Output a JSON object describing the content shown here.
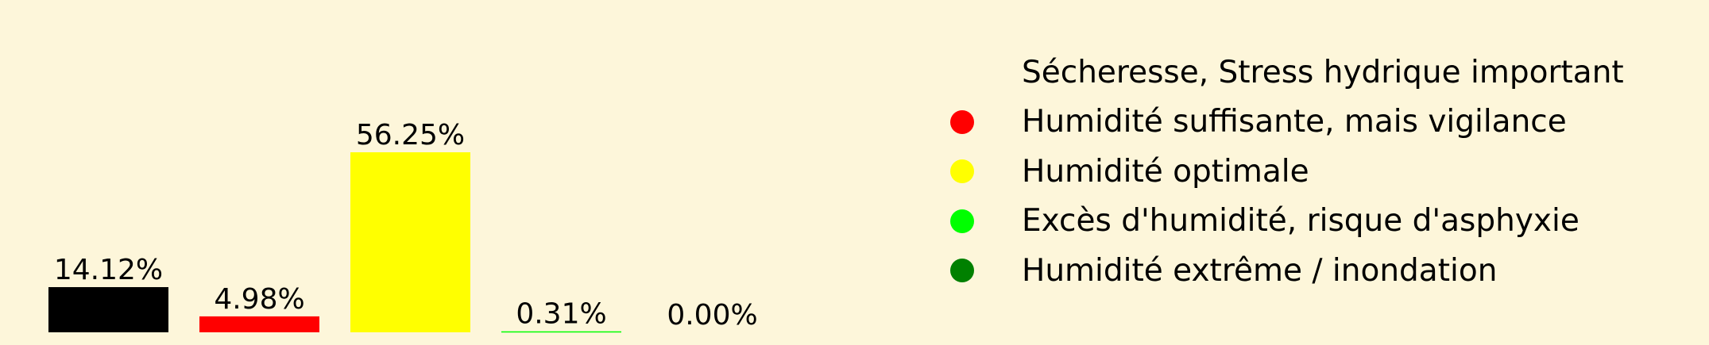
{
  "chart_data": {
    "type": "bar",
    "categories": [
      "Sécheresse, Stress hydrique important",
      "Humidité suffisante, mais vigilance",
      "Humidité optimale",
      "Excès d'humidité, risque d'asphyxie",
      "Humidité extrême / inondation"
    ],
    "values": [
      14.12,
      4.98,
      56.25,
      0.31,
      0.0
    ],
    "value_labels": [
      "14.12%",
      "4.98%",
      "56.25%",
      "0.31%",
      "0.00%"
    ],
    "colors": [
      "#000000",
      "#FF0000",
      "#FFFF00",
      "#00FF00",
      "#008000"
    ],
    "ylim": [
      0,
      56.25
    ],
    "grid": false,
    "legend_placement": "right",
    "legend": [
      {
        "label": "Sécheresse, Stress hydrique important",
        "color": "#000000"
      },
      {
        "label": "Humidité suffisante, mais vigilance",
        "color": "#FF0000"
      },
      {
        "label": "Humidité optimale",
        "color": "#FFFF00"
      },
      {
        "label": "Excès d'humidité, risque d'asphyxie",
        "color": "#00FF00"
      },
      {
        "label": "Humidité extrême / inondation",
        "color": "#008000"
      }
    ]
  },
  "colors": {
    "background": "#FDF6DA"
  }
}
